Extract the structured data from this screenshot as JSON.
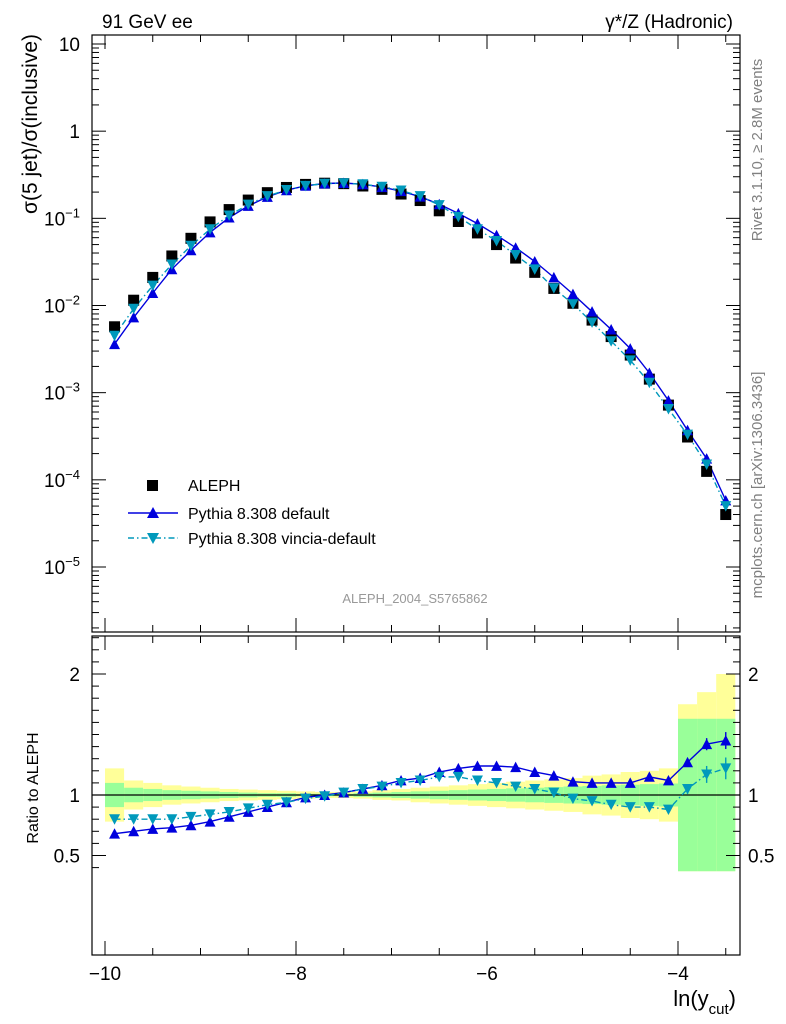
{
  "header": {
    "left": "91 GeV ee",
    "right": "γ*/Z (Hadronic)"
  },
  "side_labels": {
    "rivet": "Rivet 3.1.10, ≥ 2.8M events",
    "mcplots": "mcplots.cern.ch [arXiv:1306.3436]"
  },
  "watermark": "ALEPH_2004_S5765862",
  "colors": {
    "aleph": "#000000",
    "pythia_default": "#0000dd",
    "vincia": "#0099bb",
    "band_inner": "#99ff99",
    "band_outer": "#ffff99"
  },
  "chart_data": [
    {
      "type": "scatter",
      "panel": "main",
      "ylabel": "σ(5 jet)/σ(inclusive)",
      "yscale": "log",
      "ylim": [
        1.6e-06,
        14
      ],
      "xlim": [
        -10.1,
        -3.3
      ],
      "yticks": [
        1e-05,
        0.0001,
        0.001,
        0.01,
        0.1,
        1,
        10
      ],
      "ytick_labels": [
        "10^-5",
        "10^-4",
        "10^-3",
        "10^-2",
        "10^-1",
        "1",
        "10"
      ],
      "x": [
        -9.9,
        -9.7,
        -9.5,
        -9.3,
        -9.1,
        -8.9,
        -8.7,
        -8.5,
        -8.3,
        -8.1,
        -7.9,
        -7.7,
        -7.5,
        -7.3,
        -7.1,
        -6.9,
        -6.7,
        -6.5,
        -6.3,
        -6.1,
        -5.9,
        -5.7,
        -5.5,
        -5.3,
        -5.1,
        -4.9,
        -4.7,
        -4.5,
        -4.3,
        -4.1,
        -3.9,
        -3.7,
        -3.5
      ],
      "legend_position": "lower-left",
      "series": [
        {
          "name": "ALEPH",
          "marker": "square",
          "values": [
            0.0057,
            0.0115,
            0.021,
            0.037,
            0.059,
            0.091,
            0.126,
            0.162,
            0.197,
            0.226,
            0.245,
            0.253,
            0.25,
            0.235,
            0.215,
            0.19,
            0.16,
            0.122,
            0.092,
            0.068,
            0.05,
            0.035,
            0.024,
            0.0157,
            0.0106,
            0.0068,
            0.0044,
            0.0027,
            0.00143,
            0.00072,
            0.00031,
            0.000125,
            4e-05
          ]
        },
        {
          "name": "Pythia 8.308 default",
          "marker": "triangle-up",
          "line": "solid",
          "values": [
            0.0036,
            0.0073,
            0.0139,
            0.026,
            0.043,
            0.069,
            0.102,
            0.139,
            0.176,
            0.21,
            0.236,
            0.251,
            0.254,
            0.246,
            0.228,
            0.205,
            0.177,
            0.145,
            0.114,
            0.087,
            0.064,
            0.046,
            0.032,
            0.021,
            0.0135,
            0.0085,
            0.0053,
            0.0032,
            0.00168,
            0.00081,
            0.00037,
            0.000175,
            5.8e-05
          ]
        },
        {
          "name": "Pythia 8.308 vincia-default",
          "marker": "triangle-down",
          "line": "dash-dot",
          "values": [
            0.0045,
            0.0092,
            0.0169,
            0.0296,
            0.0485,
            0.075,
            0.108,
            0.144,
            0.18,
            0.212,
            0.236,
            0.25,
            0.253,
            0.246,
            0.231,
            0.209,
            0.18,
            0.142,
            0.104,
            0.075,
            0.055,
            0.038,
            0.026,
            0.0158,
            0.0104,
            0.0064,
            0.0039,
            0.00235,
            0.0013,
            0.00065,
            0.00033,
            0.00015,
            5e-05
          ]
        }
      ]
    },
    {
      "type": "line",
      "panel": "ratio",
      "ylabel": "Ratio to ALEPH",
      "xlabel": "ln(y_cut)",
      "xlim": [
        -10.1,
        -3.3
      ],
      "ylim": [
        0.35,
        2.35
      ],
      "xticks": [
        -10,
        -8,
        -6,
        -4
      ],
      "xtick_labels": [
        "−10",
        "−8",
        "−6",
        "−4"
      ],
      "yticks": [
        0.5,
        1,
        2
      ],
      "ytick_labels": [
        "0.5",
        "1",
        "2"
      ],
      "reference_line": 1,
      "x": [
        -9.9,
        -9.7,
        -9.5,
        -9.3,
        -9.1,
        -8.9,
        -8.7,
        -8.5,
        -8.3,
        -8.1,
        -7.9,
        -7.7,
        -7.5,
        -7.3,
        -7.1,
        -6.9,
        -6.7,
        -6.5,
        -6.3,
        -6.1,
        -5.9,
        -5.7,
        -5.5,
        -5.3,
        -5.1,
        -4.9,
        -4.7,
        -4.5,
        -4.3,
        -4.1,
        -3.9,
        -3.7,
        -3.5
      ],
      "bin_edges": [
        -10.0,
        -9.8,
        -9.6,
        -9.4,
        -9.2,
        -9.0,
        -8.8,
        -8.6,
        -8.4,
        -8.2,
        -8.0,
        -7.8,
        -7.6,
        -7.4,
        -7.2,
        -7.0,
        -6.8,
        -6.6,
        -6.4,
        -6.2,
        -6.0,
        -5.8,
        -5.6,
        -5.4,
        -5.2,
        -5.0,
        -4.8,
        -4.6,
        -4.4,
        -4.2,
        -4.0,
        -3.8,
        -3.6,
        -3.4
      ],
      "band_inner": {
        "low": [
          0.9,
          0.94,
          0.95,
          0.96,
          0.965,
          0.97,
          0.975,
          0.98,
          0.985,
          0.985,
          0.99,
          0.99,
          0.99,
          0.985,
          0.98,
          0.975,
          0.97,
          0.965,
          0.96,
          0.955,
          0.95,
          0.945,
          0.94,
          0.935,
          0.93,
          0.925,
          0.92,
          0.915,
          0.91,
          0.905,
          0.37,
          0.37,
          0.37
        ],
        "high": [
          1.1,
          1.06,
          1.05,
          1.04,
          1.035,
          1.03,
          1.025,
          1.02,
          1.015,
          1.015,
          1.01,
          1.01,
          1.01,
          1.015,
          1.02,
          1.025,
          1.03,
          1.035,
          1.04,
          1.045,
          1.05,
          1.055,
          1.06,
          1.065,
          1.07,
          1.075,
          1.08,
          1.085,
          1.09,
          1.095,
          1.63,
          1.63,
          1.63
        ]
      },
      "band_outer": {
        "low": [
          0.78,
          0.88,
          0.9,
          0.92,
          0.93,
          0.94,
          0.95,
          0.955,
          0.96,
          0.965,
          0.97,
          0.975,
          0.975,
          0.97,
          0.96,
          0.955,
          0.94,
          0.93,
          0.92,
          0.91,
          0.9,
          0.89,
          0.88,
          0.87,
          0.86,
          0.84,
          0.83,
          0.81,
          0.8,
          0.78,
          0.37,
          0.37,
          0.37
        ],
        "high": [
          1.22,
          1.12,
          1.1,
          1.08,
          1.07,
          1.06,
          1.05,
          1.045,
          1.04,
          1.035,
          1.03,
          1.025,
          1.025,
          1.03,
          1.04,
          1.05,
          1.06,
          1.07,
          1.08,
          1.09,
          1.1,
          1.11,
          1.12,
          1.13,
          1.14,
          1.16,
          1.17,
          1.19,
          1.2,
          1.22,
          1.75,
          1.85,
          2.0
        ]
      },
      "series": [
        {
          "name": "Pythia 8.308 default",
          "values": [
            0.68,
            0.7,
            0.72,
            0.73,
            0.75,
            0.78,
            0.82,
            0.86,
            0.9,
            0.94,
            0.98,
            1.0,
            1.02,
            1.05,
            1.08,
            1.12,
            1.14,
            1.19,
            1.22,
            1.24,
            1.24,
            1.23,
            1.19,
            1.16,
            1.11,
            1.1,
            1.1,
            1.1,
            1.15,
            1.12,
            1.27,
            1.42,
            1.45
          ],
          "err": [
            0.005,
            0.005,
            0.005,
            0.005,
            0.005,
            0.005,
            0.005,
            0.005,
            0.005,
            0.005,
            0.005,
            0.005,
            0.005,
            0.005,
            0.005,
            0.005,
            0.005,
            0.005,
            0.005,
            0.005,
            0.005,
            0.005,
            0.005,
            0.005,
            0.005,
            0.005,
            0.005,
            0.005,
            0.01,
            0.01,
            0.03,
            0.05,
            0.07
          ]
        },
        {
          "name": "Pythia 8.308 vincia-default",
          "values": [
            0.8,
            0.8,
            0.8,
            0.8,
            0.82,
            0.84,
            0.86,
            0.89,
            0.92,
            0.94,
            0.97,
            0.99,
            1.02,
            1.05,
            1.07,
            1.1,
            1.12,
            1.15,
            1.15,
            1.12,
            1.1,
            1.07,
            1.05,
            1.02,
            0.97,
            0.95,
            0.92,
            0.9,
            0.9,
            0.88,
            1.05,
            1.17,
            1.22
          ],
          "err": [
            0.01,
            0.01,
            0.01,
            0.01,
            0.01,
            0.01,
            0.01,
            0.01,
            0.01,
            0.01,
            0.01,
            0.01,
            0.01,
            0.01,
            0.01,
            0.01,
            0.01,
            0.01,
            0.01,
            0.01,
            0.01,
            0.01,
            0.01,
            0.01,
            0.01,
            0.01,
            0.01,
            0.01,
            0.01,
            0.01,
            0.04,
            0.07,
            0.09
          ]
        }
      ]
    }
  ]
}
